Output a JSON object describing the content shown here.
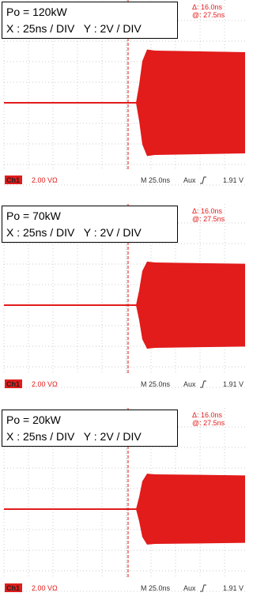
{
  "panels": [
    {
      "power": "Po = 120kW",
      "scale": "X : 25ns / DIV   Y : 2V / DIV",
      "delta": "Δ: 16.0ns",
      "at": "@: 27.5ns",
      "channel": "Ch1",
      "volts": "2.00 VΩ",
      "timebase": "M 25.0ns",
      "trigger": "Aux",
      "level": "1.91 V"
    },
    {
      "power": "Po = 70kW",
      "scale": "X : 25ns / DIV   Y : 2V / DIV",
      "delta": "Δ: 16.0ns",
      "at": "@: 27.5ns",
      "channel": "Ch1",
      "volts": "2.00 VΩ",
      "timebase": "M 25.0ns",
      "trigger": "Aux",
      "level": "1.91 V"
    },
    {
      "power": "Po = 20kW",
      "scale": "X : 25ns / DIV   Y : 2V / DIV",
      "delta": "Δ: 16.0ns",
      "at": "@: 27.5ns",
      "channel": "Ch1",
      "volts": "2.00 VΩ",
      "timebase": "M 25.0ns",
      "trigger": "Aux",
      "level": "1.91 V"
    }
  ]
}
